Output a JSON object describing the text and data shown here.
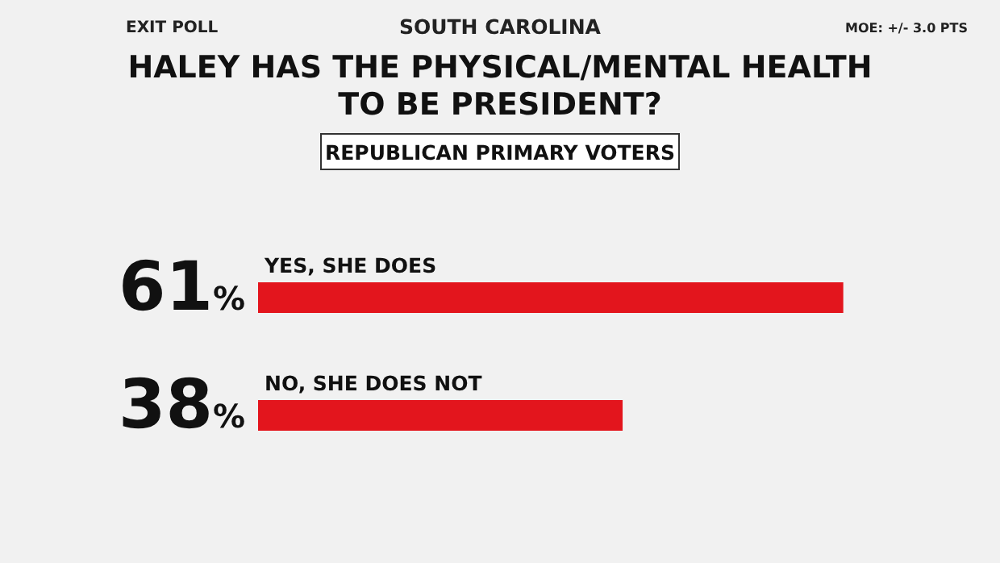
{
  "chart_data": {
    "type": "bar",
    "orientation": "horizontal",
    "title": "HALEY HAS THE PHYSICAL/MENTAL HEALTH TO BE PRESIDENT?",
    "subtitle": "REPUBLICAN PRIMARY VOTERS",
    "annotations": [
      "EXIT POLL",
      "SOUTH CAROLINA",
      "MOE: +/- 3.0 PTS"
    ],
    "categories": [
      "YES, SHE DOES",
      "NO, SHE DOES NOT"
    ],
    "values": [
      61,
      38
    ],
    "value_labels": [
      "61%",
      "38%"
    ],
    "color": "#e3151d",
    "xlim": [
      0,
      77
    ],
    "tick_labels": false,
    "grid": false
  }
}
